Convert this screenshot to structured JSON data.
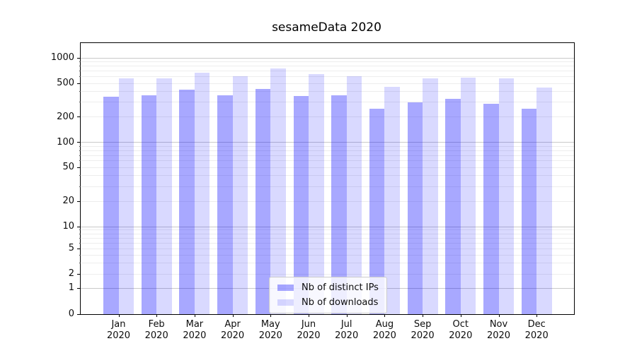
{
  "chart_data": {
    "type": "bar",
    "title": "sesameData 2020",
    "xlabel": "",
    "ylabel": "",
    "yscale": "symlog",
    "ylim": [
      0,
      1500
    ],
    "grid": true,
    "legend_position": "lower center",
    "yticks": [
      0,
      1,
      2,
      5,
      10,
      20,
      50,
      100,
      200,
      500,
      1000
    ],
    "categories": [
      "Jan 2020",
      "Feb 2020",
      "Mar 2020",
      "Apr 2020",
      "May 2020",
      "Jun 2020",
      "Jul 2020",
      "Aug 2020",
      "Sep 2020",
      "Oct 2020",
      "Nov 2020",
      "Dec 2020"
    ],
    "series": [
      {
        "name": "Nb of distinct IPs",
        "color": "rgba(0,0,255,0.34)",
        "values": [
          350,
          360,
          420,
          365,
          430,
          355,
          365,
          250,
          300,
          330,
          290,
          250
        ]
      },
      {
        "name": "Nb of downloads",
        "color": "rgba(0,0,255,0.15)",
        "values": [
          575,
          575,
          665,
          605,
          750,
          640,
          610,
          460,
          580,
          585,
          570,
          445
        ]
      }
    ]
  }
}
